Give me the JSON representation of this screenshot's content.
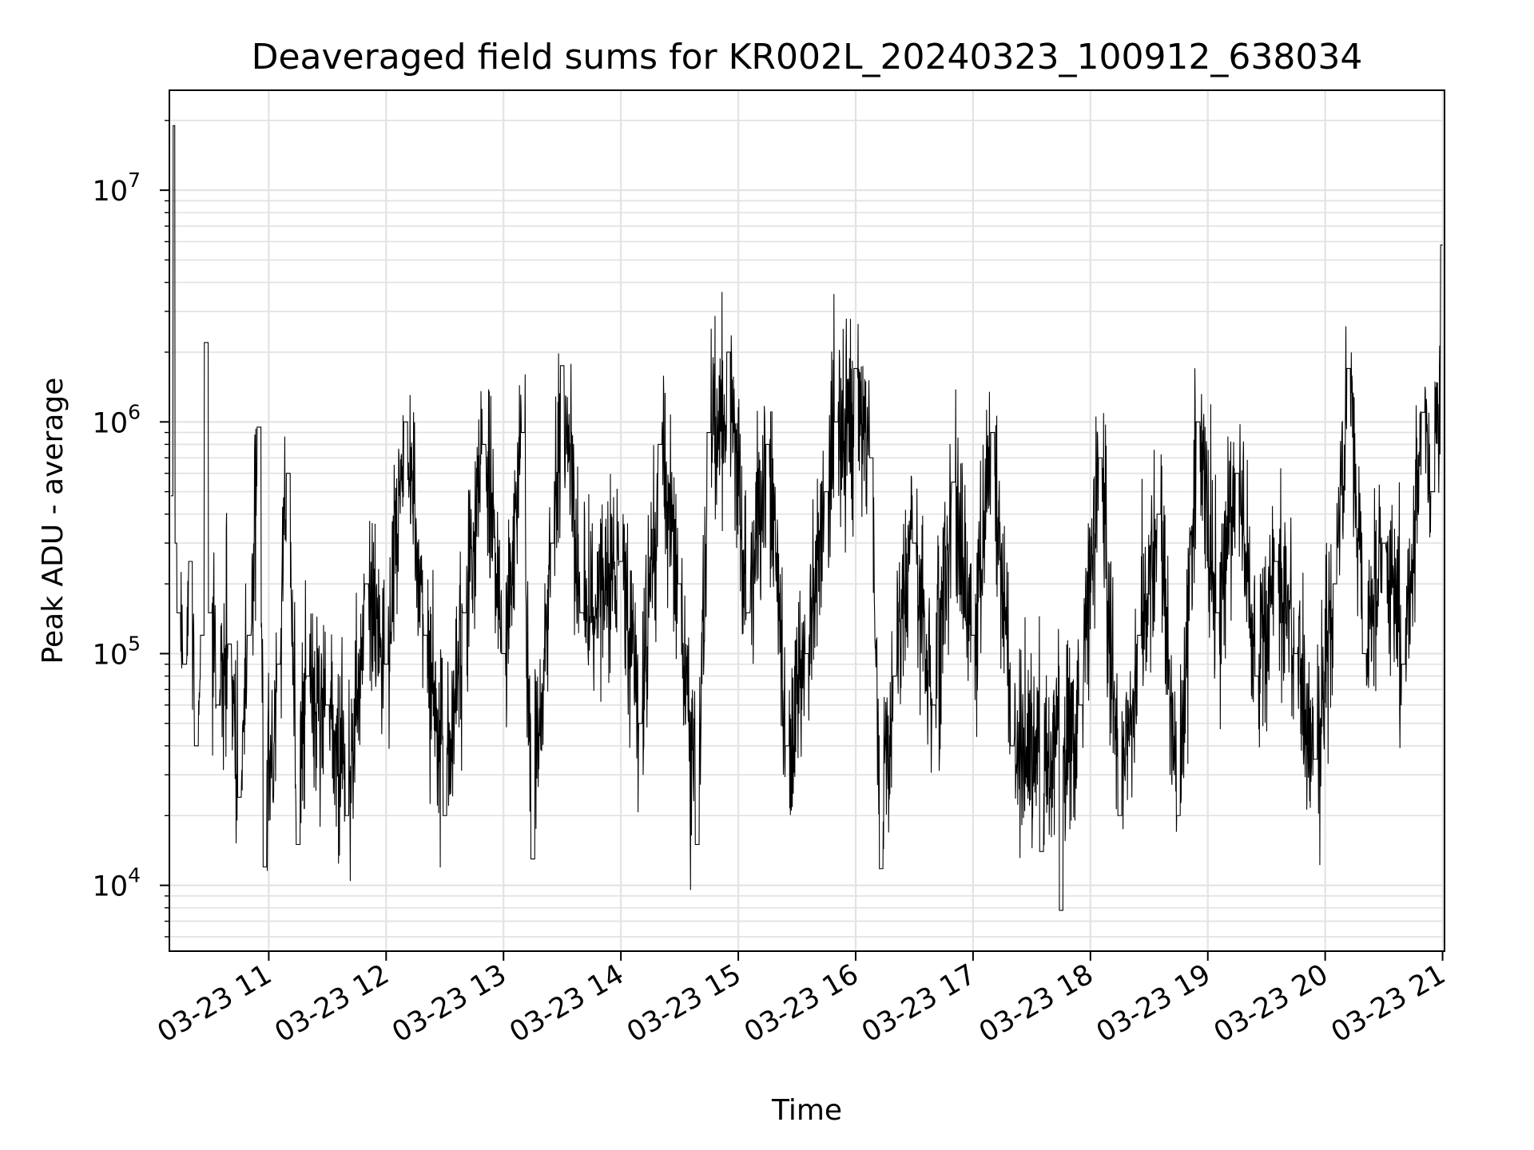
{
  "chart_data": {
    "type": "line",
    "title": "Deaveraged field sums for KR002L_20240323_100912_638034",
    "xlabel": "Time",
    "ylabel": "Peak ADU - average",
    "yscale": "log",
    "ylim": [
      5200,
      27000000
    ],
    "xlim": [
      "2024-03-23T10:09:12",
      "2024-03-23T21:01:00"
    ],
    "grid": "on (major and minor)",
    "line_color": "#000000",
    "x_ticks": [
      {
        "value": "2024-03-23T11:00:00",
        "label": "03-23 11"
      },
      {
        "value": "2024-03-23T12:00:00",
        "label": "03-23 12"
      },
      {
        "value": "2024-03-23T13:00:00",
        "label": "03-23 13"
      },
      {
        "value": "2024-03-23T14:00:00",
        "label": "03-23 14"
      },
      {
        "value": "2024-03-23T15:00:00",
        "label": "03-23 15"
      },
      {
        "value": "2024-03-23T16:00:00",
        "label": "03-23 16"
      },
      {
        "value": "2024-03-23T17:00:00",
        "label": "03-23 17"
      },
      {
        "value": "2024-03-23T18:00:00",
        "label": "03-23 18"
      },
      {
        "value": "2024-03-23T19:00:00",
        "label": "03-23 19"
      },
      {
        "value": "2024-03-23T20:00:00",
        "label": "03-23 20"
      },
      {
        "value": "2024-03-23T21:00:00",
        "label": "03-23 21"
      }
    ],
    "y_ticks": [
      {
        "value": 10000,
        "base": "10",
        "exp": "4"
      },
      {
        "value": 100000,
        "base": "10",
        "exp": "5"
      },
      {
        "value": 1000000,
        "base": "10",
        "exp": "6"
      },
      {
        "value": 10000000,
        "base": "10",
        "exp": "7"
      }
    ],
    "series": [
      {
        "points": [
          [
            "2024-03-23T10:10:00",
            480000
          ],
          [
            "2024-03-23T10:11:00",
            19000000
          ],
          [
            "2024-03-23T10:12:00",
            300000
          ],
          [
            "2024-03-23T10:14:00",
            150000
          ],
          [
            "2024-03-23T10:17:00",
            90000
          ],
          [
            "2024-03-23T10:20:00",
            250000
          ],
          [
            "2024-03-23T10:23:00",
            40000
          ],
          [
            "2024-03-23T10:26:00",
            120000
          ],
          [
            "2024-03-23T10:28:00",
            2200000
          ],
          [
            "2024-03-23T10:30:00",
            150000
          ],
          [
            "2024-03-23T10:34:00",
            60000
          ],
          [
            "2024-03-23T10:40:00",
            110000
          ],
          [
            "2024-03-23T10:45:00",
            24000
          ],
          [
            "2024-03-23T10:50:00",
            120000
          ],
          [
            "2024-03-23T10:55:00",
            950000
          ],
          [
            "2024-03-23T10:58:00",
            12000
          ],
          [
            "2024-03-23T11:05:00",
            90000
          ],
          [
            "2024-03-23T11:10:00",
            600000
          ],
          [
            "2024-03-23T11:15:00",
            15000
          ],
          [
            "2024-03-23T11:20:00",
            80000
          ],
          [
            "2024-03-23T11:30:00",
            60000
          ],
          [
            "2024-03-23T11:40:00",
            20000
          ],
          [
            "2024-03-23T11:50:00",
            200000
          ],
          [
            "2024-03-23T12:00:00",
            90000
          ],
          [
            "2024-03-23T12:10:00",
            1000000
          ],
          [
            "2024-03-23T12:20:00",
            120000
          ],
          [
            "2024-03-23T12:30:00",
            20000
          ],
          [
            "2024-03-23T12:40:00",
            150000
          ],
          [
            "2024-03-23T12:50:00",
            800000
          ],
          [
            "2024-03-23T13:00:00",
            100000
          ],
          [
            "2024-03-23T13:10:00",
            900000
          ],
          [
            "2024-03-23T13:15:00",
            13000
          ],
          [
            "2024-03-23T13:25:00",
            300000
          ],
          [
            "2024-03-23T13:30:00",
            1750000
          ],
          [
            "2024-03-23T13:40:00",
            150000
          ],
          [
            "2024-03-23T14:00:00",
            250000
          ],
          [
            "2024-03-23T14:10:00",
            50000
          ],
          [
            "2024-03-23T14:20:00",
            800000
          ],
          [
            "2024-03-23T14:30:00",
            200000
          ],
          [
            "2024-03-23T14:39:00",
            15000
          ],
          [
            "2024-03-23T14:45:00",
            900000
          ],
          [
            "2024-03-23T14:55:00",
            2000000
          ],
          [
            "2024-03-23T15:05:00",
            150000
          ],
          [
            "2024-03-23T15:15:00",
            800000
          ],
          [
            "2024-03-23T15:25:00",
            40000
          ],
          [
            "2024-03-23T15:35:00",
            100000
          ],
          [
            "2024-03-23T15:45:00",
            500000
          ],
          [
            "2024-03-23T15:50:00",
            1000000
          ],
          [
            "2024-03-23T16:00:00",
            1700000
          ],
          [
            "2024-03-23T16:08:00",
            700000
          ],
          [
            "2024-03-23T16:13:00",
            11800
          ],
          [
            "2024-03-23T16:20:00",
            80000
          ],
          [
            "2024-03-23T16:30:00",
            300000
          ],
          [
            "2024-03-23T16:40:00",
            60000
          ],
          [
            "2024-03-23T16:50:00",
            550000
          ],
          [
            "2024-03-23T17:00:00",
            120000
          ],
          [
            "2024-03-23T17:10:00",
            900000
          ],
          [
            "2024-03-23T17:20:00",
            40000
          ],
          [
            "2024-03-23T17:35:00",
            14000
          ],
          [
            "2024-03-23T17:45:00",
            7800
          ],
          [
            "2024-03-23T17:55:00",
            60000
          ],
          [
            "2024-03-23T18:05:00",
            700000
          ],
          [
            "2024-03-23T18:15:00",
            20000
          ],
          [
            "2024-03-23T18:25:00",
            120000
          ],
          [
            "2024-03-23T18:35:00",
            400000
          ],
          [
            "2024-03-23T18:45:00",
            20000
          ],
          [
            "2024-03-23T18:55:00",
            1000000
          ],
          [
            "2024-03-23T19:05:00",
            150000
          ],
          [
            "2024-03-23T19:15:00",
            600000
          ],
          [
            "2024-03-23T19:25:00",
            80000
          ],
          [
            "2024-03-23T19:35:00",
            250000
          ],
          [
            "2024-03-23T19:45:00",
            100000
          ],
          [
            "2024-03-23T19:55:00",
            35000
          ],
          [
            "2024-03-23T20:05:00",
            200000
          ],
          [
            "2024-03-23T20:12:00",
            1700000
          ],
          [
            "2024-03-23T20:20:00",
            100000
          ],
          [
            "2024-03-23T20:30:00",
            300000
          ],
          [
            "2024-03-23T20:40:00",
            90000
          ],
          [
            "2024-03-23T20:50:00",
            1100000
          ],
          [
            "2024-03-23T20:55:00",
            500000
          ],
          [
            "2024-03-23T21:00:00",
            5800000
          ]
        ]
      }
    ]
  }
}
